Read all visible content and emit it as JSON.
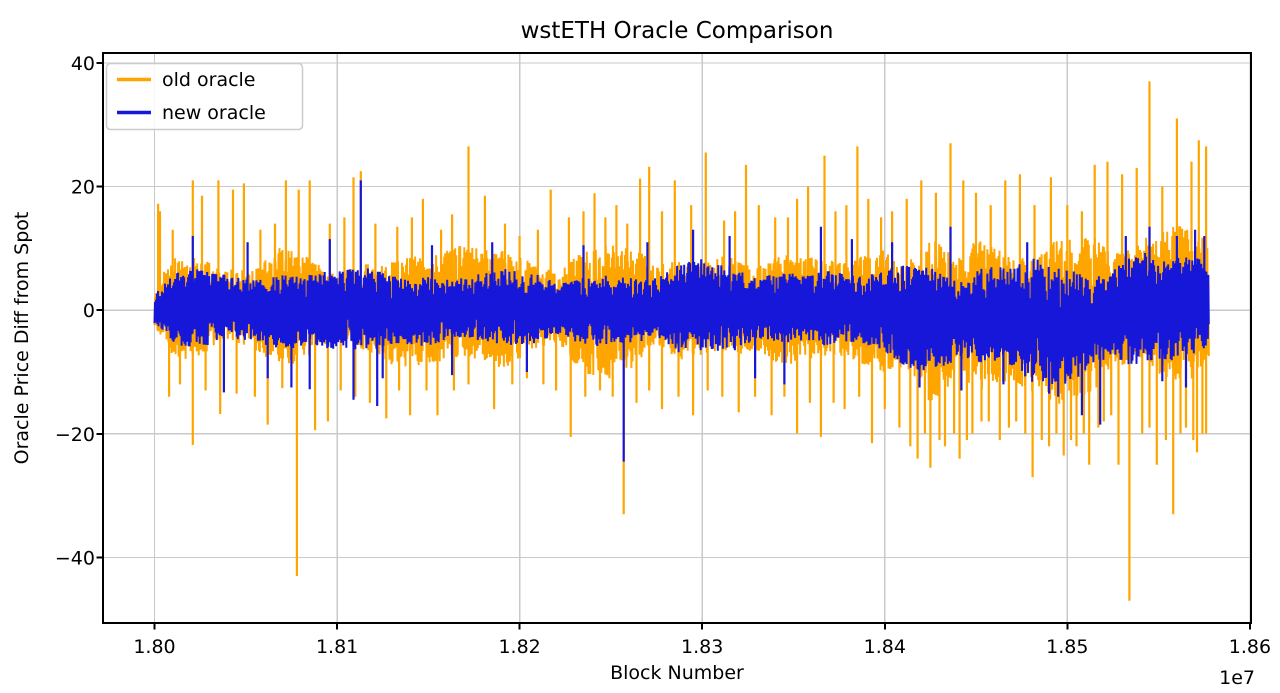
{
  "figure": {
    "background": "#FFFFFF"
  },
  "chart_data": {
    "type": "line",
    "title": "wstETH Oracle Comparison",
    "xlabel": "Block Number",
    "ylabel": "Oracle Price Diff from Spot",
    "x_offset_text": "1e7",
    "x_scale_factor": 10000000,
    "xlim": [
      1.79718,
      1.86006
    ],
    "ylim": [
      -50.6,
      41.6
    ],
    "x_data_range": [
      1.8,
      1.85775
    ],
    "grid": true,
    "grid_color": "#C9C9C9",
    "legend_position": "upper left",
    "x_ticks": {
      "values": [
        1.8,
        1.81,
        1.82,
        1.83,
        1.84,
        1.85,
        1.86
      ],
      "labels": [
        "1.80",
        "1.81",
        "1.82",
        "1.83",
        "1.84",
        "1.85",
        "1.86"
      ]
    },
    "y_ticks": {
      "values": [
        40,
        20,
        0,
        -20,
        -40
      ],
      "labels": [
        "40",
        "20",
        "0",
        "−20",
        "−40"
      ]
    },
    "representation_note": "Two dense noisy series (oracle price diff vs spot, per block). Stored as typical-amplitude envelopes (x in units of 1e7 blocks) plus prominent spikes [x, value] read from the plot.",
    "series": [
      {
        "name": "old oracle",
        "color": "#FFA500",
        "envelope": {
          "x": [
            1.8,
            1.8005,
            1.801,
            1.8025,
            1.804,
            1.806,
            1.808,
            1.81,
            1.8115,
            1.813,
            1.815,
            1.817,
            1.819,
            1.821,
            1.823,
            1.825,
            1.827,
            1.829,
            1.831,
            1.833,
            1.835,
            1.837,
            1.839,
            1.841,
            1.8425,
            1.844,
            1.8455,
            1.847,
            1.8485,
            1.85,
            1.8515,
            1.853,
            1.8545,
            1.856,
            1.85775
          ],
          "hi": [
            5,
            8,
            10,
            11,
            11,
            10,
            11,
            10,
            12,
            11,
            10,
            12,
            10,
            9,
            11,
            11,
            12,
            11,
            12,
            11,
            12,
            12,
            12,
            13,
            14,
            15,
            13,
            12,
            13,
            12,
            14,
            14,
            16,
            15,
            13
          ],
          "lo": [
            -4,
            -7,
            -9,
            -10,
            -9,
            -10,
            -10,
            -9,
            -11,
            -12,
            -10,
            -9,
            -10,
            -8,
            -11,
            -12,
            -10,
            -11,
            -10,
            -11,
            -12,
            -11,
            -12,
            -14,
            -18,
            -17,
            -14,
            -15,
            -17,
            -16,
            -15,
            -13,
            -14,
            -13,
            -11
          ]
        },
        "spikes": [
          [
            1.8002,
            17.2
          ],
          [
            1.8003,
            16
          ],
          [
            1.8008,
            -14
          ],
          [
            1.801,
            13
          ],
          [
            1.8014,
            -12
          ],
          [
            1.8021,
            21
          ],
          [
            1.8021,
            -21.8
          ],
          [
            1.8026,
            18.5
          ],
          [
            1.8028,
            -13
          ],
          [
            1.8035,
            21
          ],
          [
            1.8036,
            -16.8
          ],
          [
            1.8043,
            19.5
          ],
          [
            1.8045,
            -13.5
          ],
          [
            1.8049,
            20.5
          ],
          [
            1.8055,
            -14
          ],
          [
            1.8058,
            13
          ],
          [
            1.8062,
            -18.5
          ],
          [
            1.8066,
            14
          ],
          [
            1.807,
            -12.6
          ],
          [
            1.8072,
            21
          ],
          [
            1.8078,
            -43
          ],
          [
            1.8079,
            19.5
          ],
          [
            1.8085,
            21
          ],
          [
            1.8088,
            -19.4
          ],
          [
            1.8095,
            -18
          ],
          [
            1.8096,
            14
          ],
          [
            1.8102,
            -13
          ],
          [
            1.8104,
            15
          ],
          [
            1.8109,
            21.5
          ],
          [
            1.811,
            -14
          ],
          [
            1.8113,
            22.5
          ],
          [
            1.8118,
            -15
          ],
          [
            1.8121,
            14
          ],
          [
            1.8127,
            -17.5
          ],
          [
            1.8133,
            13.5
          ],
          [
            1.8134,
            -13
          ],
          [
            1.814,
            -17
          ],
          [
            1.8141,
            15
          ],
          [
            1.8147,
            18
          ],
          [
            1.8149,
            -13
          ],
          [
            1.8155,
            -17
          ],
          [
            1.8157,
            13
          ],
          [
            1.8163,
            15.5
          ],
          [
            1.8164,
            -13
          ],
          [
            1.8172,
            26.5
          ],
          [
            1.8172,
            -12
          ],
          [
            1.8181,
            18.5
          ],
          [
            1.8186,
            -16
          ],
          [
            1.8192,
            14
          ],
          [
            1.8196,
            -12
          ],
          [
            1.82,
            12
          ],
          [
            1.8204,
            -11
          ],
          [
            1.821,
            13
          ],
          [
            1.8213,
            -12
          ],
          [
            1.8217,
            19.5
          ],
          [
            1.822,
            -13
          ],
          [
            1.8227,
            15
          ],
          [
            1.8228,
            -20.5
          ],
          [
            1.8235,
            16
          ],
          [
            1.8236,
            -14
          ],
          [
            1.8241,
            18.9
          ],
          [
            1.8244,
            -13
          ],
          [
            1.8247,
            15
          ],
          [
            1.8251,
            -14
          ],
          [
            1.8253,
            17
          ],
          [
            1.8257,
            -33
          ],
          [
            1.8259,
            14
          ],
          [
            1.8264,
            -15
          ],
          [
            1.8266,
            21.3
          ],
          [
            1.8271,
            23.2
          ],
          [
            1.8271,
            -13
          ],
          [
            1.8278,
            16
          ],
          [
            1.8278,
            -16
          ],
          [
            1.8285,
            21
          ],
          [
            1.8287,
            -14
          ],
          [
            1.8294,
            17
          ],
          [
            1.8295,
            -17
          ],
          [
            1.8302,
            25.5
          ],
          [
            1.8303,
            -13
          ],
          [
            1.8311,
            -14
          ],
          [
            1.8312,
            14.5
          ],
          [
            1.8318,
            16
          ],
          [
            1.832,
            -16.5
          ],
          [
            1.8324,
            23.5
          ],
          [
            1.8329,
            -14
          ],
          [
            1.8331,
            17
          ],
          [
            1.8338,
            -17
          ],
          [
            1.834,
            15
          ],
          [
            1.8345,
            -14
          ],
          [
            1.8347,
            15
          ],
          [
            1.8352,
            -20
          ],
          [
            1.8352,
            18
          ],
          [
            1.8358,
            20
          ],
          [
            1.8359,
            -15
          ],
          [
            1.8365,
            -20.5
          ],
          [
            1.8367,
            25
          ],
          [
            1.8372,
            -15
          ],
          [
            1.8373,
            16
          ],
          [
            1.8378,
            -16
          ],
          [
            1.8379,
            17
          ],
          [
            1.8385,
            26.5
          ],
          [
            1.8386,
            -14
          ],
          [
            1.8391,
            18
          ],
          [
            1.8393,
            -21.5
          ],
          [
            1.8398,
            15
          ],
          [
            1.84,
            -16
          ],
          [
            1.8404,
            16
          ],
          [
            1.8408,
            -19
          ],
          [
            1.8412,
            18
          ],
          [
            1.8414,
            -22
          ],
          [
            1.8418,
            -24
          ],
          [
            1.842,
            21
          ],
          [
            1.8422,
            -20
          ],
          [
            1.8425,
            -25.5
          ],
          [
            1.8428,
            19
          ],
          [
            1.843,
            -21
          ],
          [
            1.8433,
            -22
          ],
          [
            1.8436,
            27
          ],
          [
            1.8438,
            -20
          ],
          [
            1.8441,
            -24
          ],
          [
            1.8443,
            21
          ],
          [
            1.8445,
            -21
          ],
          [
            1.8448,
            -20
          ],
          [
            1.845,
            19
          ],
          [
            1.8453,
            -18
          ],
          [
            1.8457,
            -18
          ],
          [
            1.8458,
            17
          ],
          [
            1.8463,
            -21
          ],
          [
            1.8466,
            21
          ],
          [
            1.8468,
            -19
          ],
          [
            1.8472,
            -18
          ],
          [
            1.8474,
            22
          ],
          [
            1.8477,
            -20
          ],
          [
            1.8481,
            -27
          ],
          [
            1.8482,
            17
          ],
          [
            1.8486,
            -21
          ],
          [
            1.849,
            -22
          ],
          [
            1.8491,
            21.5
          ],
          [
            1.8494,
            -20
          ],
          [
            1.8498,
            -23.5
          ],
          [
            1.85,
            17
          ],
          [
            1.8502,
            -21
          ],
          [
            1.8505,
            -22
          ],
          [
            1.8508,
            16
          ],
          [
            1.8509,
            -20
          ],
          [
            1.8512,
            -25
          ],
          [
            1.8515,
            23.5
          ],
          [
            1.8517,
            -19
          ],
          [
            1.852,
            -18
          ],
          [
            1.8522,
            24
          ],
          [
            1.8524,
            -17
          ],
          [
            1.8528,
            -25
          ],
          [
            1.853,
            22
          ],
          [
            1.8534,
            -47
          ],
          [
            1.8538,
            23
          ],
          [
            1.8541,
            -20
          ],
          [
            1.8545,
            37
          ],
          [
            1.8545,
            -19
          ],
          [
            1.8549,
            -25
          ],
          [
            1.8552,
            20
          ],
          [
            1.8554,
            -21
          ],
          [
            1.8558,
            -33
          ],
          [
            1.856,
            31
          ],
          [
            1.8562,
            -20
          ],
          [
            1.8565,
            -19
          ],
          [
            1.8568,
            24
          ],
          [
            1.8569,
            -21
          ],
          [
            1.8571,
            -23
          ],
          [
            1.8572,
            27.5
          ],
          [
            1.8574,
            -20
          ],
          [
            1.8576,
            26.5
          ],
          [
            1.8576,
            -20
          ]
        ]
      },
      {
        "name": "new oracle",
        "color": "#1717D9",
        "envelope": {
          "x": [
            1.8,
            1.8005,
            1.801,
            1.802,
            1.804,
            1.806,
            1.808,
            1.81,
            1.812,
            1.814,
            1.816,
            1.818,
            1.82,
            1.822,
            1.824,
            1.826,
            1.828,
            1.83,
            1.832,
            1.834,
            1.836,
            1.838,
            1.84,
            1.842,
            1.8435,
            1.845,
            1.8465,
            1.848,
            1.8495,
            1.851,
            1.8525,
            1.854,
            1.8555,
            1.857,
            1.85775
          ],
          "hi": [
            4,
            5.5,
            6.5,
            7,
            7.5,
            6.5,
            7,
            7.5,
            8.5,
            7,
            7.5,
            8,
            6.5,
            7.5,
            7.5,
            8,
            8,
            8.5,
            8,
            9,
            8.5,
            9,
            8.5,
            9,
            10,
            9,
            9,
            9.5,
            9,
            10,
            10,
            11,
            11,
            12,
            10
          ],
          "lo": [
            -3.5,
            -5,
            -6,
            -6.5,
            -6.5,
            -7,
            -7.5,
            -7,
            -8,
            -8,
            -7,
            -7,
            -6,
            -7,
            -8,
            -8,
            -7.5,
            -7,
            -8,
            -8,
            -8,
            -8.5,
            -9,
            -12,
            -13,
            -11,
            -10,
            -13,
            -14,
            -15,
            -11,
            -10,
            -11,
            -10,
            -9
          ]
        },
        "spikes": [
          [
            1.8021,
            12
          ],
          [
            1.8038,
            -13.3
          ],
          [
            1.8051,
            11
          ],
          [
            1.8062,
            -11
          ],
          [
            1.8075,
            -12.5
          ],
          [
            1.8085,
            -12.8
          ],
          [
            1.8096,
            11.5
          ],
          [
            1.8109,
            -14.5
          ],
          [
            1.8113,
            21
          ],
          [
            1.8122,
            -15.5
          ],
          [
            1.8125,
            -11
          ],
          [
            1.8152,
            10.5
          ],
          [
            1.8163,
            -10.5
          ],
          [
            1.8185,
            11
          ],
          [
            1.8204,
            -10
          ],
          [
            1.8235,
            10.5
          ],
          [
            1.8257,
            -24.5
          ],
          [
            1.827,
            11
          ],
          [
            1.8295,
            13
          ],
          [
            1.8315,
            12
          ],
          [
            1.8329,
            -11
          ],
          [
            1.8345,
            -12
          ],
          [
            1.8365,
            13.5
          ],
          [
            1.8382,
            11.5
          ],
          [
            1.8404,
            11
          ],
          [
            1.8419,
            -12.5
          ],
          [
            1.8436,
            13.5
          ],
          [
            1.8442,
            -13
          ],
          [
            1.8465,
            -12
          ],
          [
            1.8478,
            11
          ],
          [
            1.849,
            -13.5
          ],
          [
            1.8495,
            -14
          ],
          [
            1.8508,
            -17
          ],
          [
            1.8518,
            -18.5
          ],
          [
            1.8532,
            12
          ],
          [
            1.8545,
            13.5
          ],
          [
            1.8552,
            -11.5
          ],
          [
            1.856,
            12
          ],
          [
            1.8565,
            -12.5
          ],
          [
            1.857,
            13
          ],
          [
            1.8575,
            12
          ]
        ]
      }
    ]
  }
}
